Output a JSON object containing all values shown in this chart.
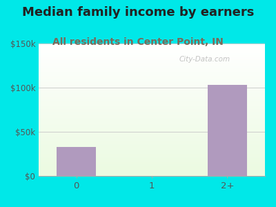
{
  "title": "Median family income by earners",
  "subtitle": "All residents in Center Point, IN",
  "categories": [
    "0",
    "1",
    "2+"
  ],
  "values": [
    33000,
    0,
    103000
  ],
  "bar_color": "#b09abe",
  "background_color": "#00e8e8",
  "title_color": "#222222",
  "subtitle_color": "#7a6a5a",
  "tick_color": "#555555",
  "ylim": [
    0,
    150000
  ],
  "yticks": [
    0,
    50000,
    100000,
    150000
  ],
  "ytick_labels": [
    "$0",
    "$50k",
    "$100k",
    "$150k"
  ],
  "title_fontsize": 13,
  "subtitle_fontsize": 10,
  "watermark": "City-Data.com"
}
